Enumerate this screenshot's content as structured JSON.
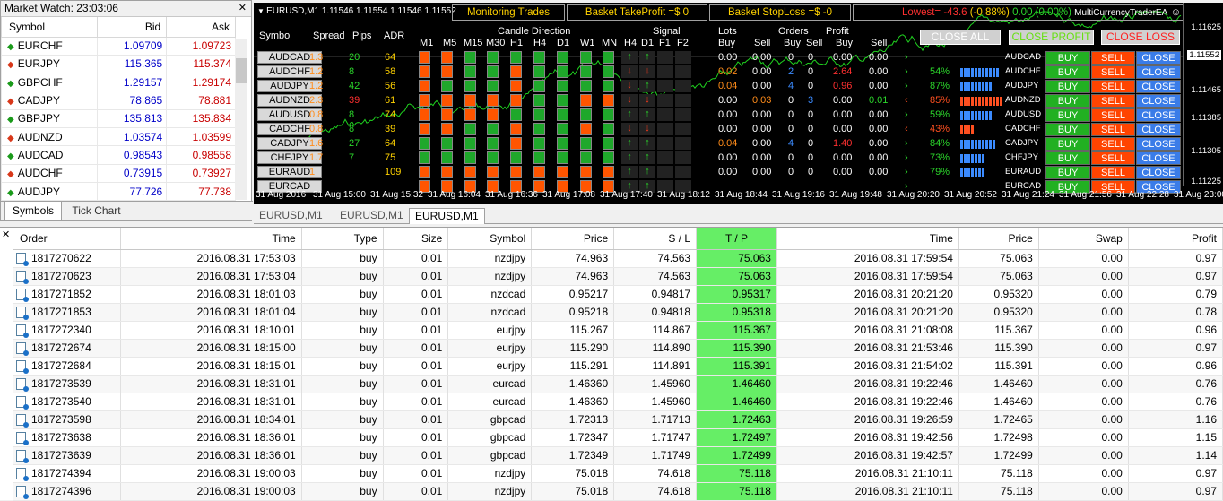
{
  "market_watch": {
    "title": "Market Watch: 23:03:06",
    "columns": [
      "Symbol",
      "Bid",
      "Ask"
    ],
    "rows": [
      {
        "symbol": "EURCHF",
        "dir": "up",
        "bid": "1.09709",
        "ask": "1.09723"
      },
      {
        "symbol": "EURJPY",
        "dir": "down",
        "bid": "115.365",
        "ask": "115.374"
      },
      {
        "symbol": "GBPCHF",
        "dir": "up",
        "bid": "1.29157",
        "ask": "1.29174"
      },
      {
        "symbol": "CADJPY",
        "dir": "down",
        "bid": "78.865",
        "ask": "78.881"
      },
      {
        "symbol": "GBPJPY",
        "dir": "up",
        "bid": "135.813",
        "ask": "135.834"
      },
      {
        "symbol": "AUDNZD",
        "dir": "down",
        "bid": "1.03574",
        "ask": "1.03599"
      },
      {
        "symbol": "AUDCAD",
        "dir": "up",
        "bid": "0.98543",
        "ask": "0.98558"
      },
      {
        "symbol": "AUDCHF",
        "dir": "down",
        "bid": "0.73915",
        "ask": "0.73927"
      },
      {
        "symbol": "AUDJPY",
        "dir": "up",
        "bid": "77.726",
        "ask": "77.738"
      }
    ],
    "tabs": [
      "Symbols",
      "Tick Chart"
    ]
  },
  "chart": {
    "symbol_label": "EURUSD,M1  1.11546 1.11554 1.11546 1.11552",
    "monitoring": "Monitoring Trades",
    "basket_tp": "Basket TakeProfit =$ 0",
    "basket_sl": "Basket StopLoss =$ -0",
    "lowest": "Lowest= -43.6",
    "lowest_pct": "(-0.88%)",
    "profit_info": "0.00 (0.00%)",
    "ea_name": "MultiCurrencyTraderEA",
    "close_all": "CLOSE ALL",
    "close_profit": "CLOSE PROFIT",
    "close_loss": "CLOSE LOSS",
    "headers": {
      "symbol": "Symbol",
      "spread": "Spread",
      "pips": "Pips",
      "adr": "ADR",
      "candle": "Candle Direction",
      "signal": "Signal",
      "lots": "Lots",
      "orders": "Orders",
      "profit": "Profit",
      "lots_buy": "Buy",
      "lots_sell": "Sell",
      "orders_buy": "Buy",
      "orders_sell": "Sell",
      "profit_buy": "Buy",
      "profit_sell": "Sell",
      "tf": [
        "M1",
        "M5",
        "M15",
        "M30",
        "H1",
        "H4",
        "D1",
        "W1",
        "MN"
      ],
      "sig_tf": [
        "H4",
        "D1",
        "F1",
        "F2"
      ]
    },
    "rows": [
      {
        "sym": "AUDCAD",
        "spread": "1.3",
        "pips": "20",
        "adr": "64",
        "candles": "ooggggggg",
        "sig": "uu--",
        "lb": "0.00",
        "ls": "0.00",
        "ob": "0",
        "os": "0",
        "pb": "0.00",
        "ps": "0.00",
        "pct": "",
        "pname": "AUDCAD"
      },
      {
        "sym": "AUDCHF",
        "spread": "1.2",
        "pips": "8",
        "adr": "58",
        "candles": "ooggogggg",
        "sig": "dd--",
        "lb": "0.02",
        "ls": "0.00",
        "ob": "2",
        "os": "0",
        "pb": "2.64",
        "ps": "0.00",
        "pct": "54%",
        "pname": "AUDCHF"
      },
      {
        "sym": "AUDJPY",
        "spread": "1.2",
        "pips": "42",
        "adr": "56",
        "candles": "ogggogggg",
        "sig": "du--",
        "lb": "0.04",
        "ls": "0.00",
        "ob": "4",
        "os": "0",
        "pb": "0.96",
        "ps": "0.00",
        "pct": "87%",
        "pname": "AUDJPY"
      },
      {
        "sym": "AUDNZD",
        "spread": "2.3",
        "pips": "39",
        "adr": "61",
        "candles": "oooooggoo",
        "sig": "dd--",
        "lb": "0.00",
        "ls": "0.03",
        "ob": "0",
        "os": "3",
        "pb": "0.00",
        "ps": "0.01",
        "pct": "85%",
        "pname": "AUDNZD"
      },
      {
        "sym": "AUDUSD",
        "spread": "0.8",
        "pips": "8",
        "adr": "74",
        "candles": "ooooggggg",
        "sig": "uu--",
        "lb": "0.00",
        "ls": "0.00",
        "ob": "0",
        "os": "0",
        "pb": "0.00",
        "ps": "0.00",
        "pct": "59%",
        "pname": "AUDUSD"
      },
      {
        "sym": "CADCHF",
        "spread": "0.8",
        "pips": "8",
        "adr": "39",
        "candles": "ooggoggog",
        "sig": "dd--",
        "lb": "0.00",
        "ls": "0.00",
        "ob": "0",
        "os": "0",
        "pb": "0.00",
        "ps": "0.00",
        "pct": "43%",
        "pname": "CADCHF"
      },
      {
        "sym": "CADJPY",
        "spread": "1.6",
        "pips": "27",
        "adr": "64",
        "candles": "ggggogggg",
        "sig": "uu--",
        "lb": "0.04",
        "ls": "0.00",
        "ob": "4",
        "os": "0",
        "pb": "1.40",
        "ps": "0.00",
        "pct": "84%",
        "pname": "CADJPY"
      },
      {
        "sym": "CHFJPY",
        "spread": "1.7",
        "pips": "7",
        "adr": "75",
        "candles": "ggggggggg",
        "sig": "uu--",
        "lb": "0.00",
        "ls": "0.00",
        "ob": "0",
        "os": "0",
        "pb": "0.00",
        "ps": "0.00",
        "pct": "73%",
        "pname": "CHFJPY"
      },
      {
        "sym": "EURAUD",
        "spread": "1",
        "pips": "",
        "adr": "109",
        "candles": "ooooooooo",
        "sig": "uu--",
        "lb": "0.00",
        "ls": "0.00",
        "ob": "0",
        "os": "0",
        "pb": "0.00",
        "ps": "0.00",
        "pct": "79%",
        "pname": "EURAUD"
      },
      {
        "sym": "EURCAD",
        "spread": "",
        "pips": "",
        "adr": "",
        "candles": "ooooooooo",
        "sig": "uu--",
        "lb": "",
        "ls": "",
        "ob": "",
        "os": "",
        "pb": "",
        "ps": "",
        "pct": "",
        "pname": "EURCAD"
      }
    ],
    "buttons": {
      "buy": "BUY",
      "sell": "SELL",
      "close": "CLOSE"
    },
    "y_axis": [
      "1.11625",
      "1.11552",
      "1.11465",
      "1.11385",
      "1.11305",
      "1.11225"
    ],
    "x_axis": [
      "31 Aug 2016",
      "31 Aug 15:00",
      "31 Aug 15:32",
      "31 Aug 16:04",
      "31 Aug 16:36",
      "31 Aug 17:08",
      "31 Aug 17:40",
      "31 Aug 18:12",
      "31 Aug 18:44",
      "31 Aug 19:16",
      "31 Aug 19:48",
      "31 Aug 20:20",
      "31 Aug 20:52",
      "31 Aug 21:24",
      "31 Aug 21:56",
      "31 Aug 22:28",
      "31 Aug 23:00"
    ]
  },
  "chart_tabs": [
    "EURUSD,M1",
    "EURUSD,M1",
    "EURUSD,M1"
  ],
  "terminal": {
    "columns": [
      "Order",
      "Time",
      "Type",
      "Size",
      "Symbol",
      "Price",
      "S / L",
      "T / P",
      "Time",
      "Price",
      "Swap",
      "Profit"
    ],
    "rows": [
      [
        "1817270622",
        "2016.08.31 17:53:03",
        "buy",
        "0.01",
        "nzdjpy",
        "74.963",
        "74.563",
        "75.063",
        "2016.08.31 17:59:54",
        "75.063",
        "0.00",
        "0.97"
      ],
      [
        "1817270623",
        "2016.08.31 17:53:04",
        "buy",
        "0.01",
        "nzdjpy",
        "74.963",
        "74.563",
        "75.063",
        "2016.08.31 17:59:54",
        "75.063",
        "0.00",
        "0.97"
      ],
      [
        "1817271852",
        "2016.08.31 18:01:03",
        "buy",
        "0.01",
        "nzdcad",
        "0.95217",
        "0.94817",
        "0.95317",
        "2016.08.31 20:21:20",
        "0.95320",
        "0.00",
        "0.79"
      ],
      [
        "1817271853",
        "2016.08.31 18:01:04",
        "buy",
        "0.01",
        "nzdcad",
        "0.95218",
        "0.94818",
        "0.95318",
        "2016.08.31 20:21:20",
        "0.95320",
        "0.00",
        "0.78"
      ],
      [
        "1817272340",
        "2016.08.31 18:10:01",
        "buy",
        "0.01",
        "eurjpy",
        "115.267",
        "114.867",
        "115.367",
        "2016.08.31 21:08:08",
        "115.367",
        "0.00",
        "0.96"
      ],
      [
        "1817272674",
        "2016.08.31 18:15:00",
        "buy",
        "0.01",
        "eurjpy",
        "115.290",
        "114.890",
        "115.390",
        "2016.08.31 21:53:46",
        "115.390",
        "0.00",
        "0.97"
      ],
      [
        "1817272684",
        "2016.08.31 18:15:01",
        "buy",
        "0.01",
        "eurjpy",
        "115.291",
        "114.891",
        "115.391",
        "2016.08.31 21:54:02",
        "115.391",
        "0.00",
        "0.96"
      ],
      [
        "1817273539",
        "2016.08.31 18:31:01",
        "buy",
        "0.01",
        "eurcad",
        "1.46360",
        "1.45960",
        "1.46460",
        "2016.08.31 19:22:46",
        "1.46460",
        "0.00",
        "0.76"
      ],
      [
        "1817273540",
        "2016.08.31 18:31:01",
        "buy",
        "0.01",
        "eurcad",
        "1.46360",
        "1.45960",
        "1.46460",
        "2016.08.31 19:22:46",
        "1.46460",
        "0.00",
        "0.76"
      ],
      [
        "1817273598",
        "2016.08.31 18:34:01",
        "buy",
        "0.01",
        "gbpcad",
        "1.72313",
        "1.71713",
        "1.72463",
        "2016.08.31 19:26:59",
        "1.72465",
        "0.00",
        "1.16"
      ],
      [
        "1817273638",
        "2016.08.31 18:36:01",
        "buy",
        "0.01",
        "gbpcad",
        "1.72347",
        "1.71747",
        "1.72497",
        "2016.08.31 19:42:56",
        "1.72498",
        "0.00",
        "1.15"
      ],
      [
        "1817273639",
        "2016.08.31 18:36:01",
        "buy",
        "0.01",
        "gbpcad",
        "1.72349",
        "1.71749",
        "1.72499",
        "2016.08.31 19:42:57",
        "1.72499",
        "0.00",
        "1.14"
      ],
      [
        "1817274394",
        "2016.08.31 19:00:03",
        "buy",
        "0.01",
        "nzdjpy",
        "75.018",
        "74.618",
        "75.118",
        "2016.08.31 21:10:11",
        "75.118",
        "0.00",
        "0.97"
      ],
      [
        "1817274396",
        "2016.08.31 19:00:03",
        "buy",
        "0.01",
        "nzdjpy",
        "75.018",
        "74.618",
        "75.118",
        "2016.08.31 21:10:11",
        "75.118",
        "0.00",
        "0.97"
      ]
    ]
  }
}
